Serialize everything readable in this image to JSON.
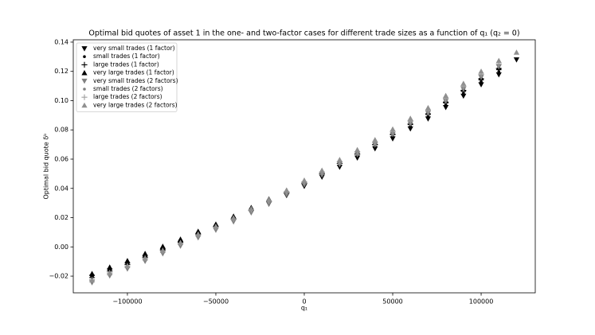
{
  "chart_data": {
    "type": "scatter",
    "title": "Optimal bid quotes of asset 1 in the one- and two-factor cases for different trade sizes as a function of q₁ (q₂ = 0)",
    "xlabel": "q₁",
    "ylabel": "Optimal bid quote δᵇ",
    "x": [
      -120000,
      -110000,
      -100000,
      -90000,
      -80000,
      -70000,
      -60000,
      -50000,
      -40000,
      -30000,
      -20000,
      -10000,
      0,
      10000,
      20000,
      30000,
      40000,
      50000,
      60000,
      70000,
      80000,
      90000,
      100000,
      110000,
      120000
    ],
    "series": [
      {
        "name": "very small trades (1 factor)",
        "color": "#000000",
        "marker": "v",
        "values": [
          -0.0206,
          -0.0163,
          -0.012,
          -0.0072,
          -0.0024,
          0.0024,
          0.0077,
          0.0125,
          0.0178,
          0.0236,
          0.0294,
          0.0352,
          0.0415,
          0.0478,
          0.0546,
          0.0609,
          0.0672,
          0.074,
          0.0808,
          0.0876,
          0.0954,
          0.1032,
          0.111,
          0.1178,
          0.128
        ]
      },
      {
        "name": "small trades (1 factor)",
        "color": "#000000",
        "marker": "o",
        "values": [
          -0.0208,
          -0.0164,
          -0.012,
          -0.0071,
          -0.0022,
          0.0027,
          0.0081,
          0.013,
          0.0184,
          0.0243,
          0.0302,
          0.0361,
          0.0425,
          0.0489,
          0.0558,
          0.0622,
          0.0686,
          0.0755,
          0.0824,
          0.0893,
          0.0972,
          0.1051,
          0.113,
          0.1199,
          null
        ]
      },
      {
        "name": "large trades (1 factor)",
        "color": "#000000",
        "marker": "+",
        "values": [
          -0.021,
          -0.0165,
          -0.012,
          -0.007,
          -0.002,
          0.003,
          0.0085,
          0.0135,
          0.019,
          0.025,
          0.031,
          0.037,
          0.0435,
          0.05,
          0.057,
          0.0635,
          0.07,
          0.077,
          0.084,
          0.091,
          0.099,
          0.107,
          0.115,
          0.122,
          null
        ]
      },
      {
        "name": "very large trades (1 factor)",
        "color": "#000000",
        "marker": "^",
        "values": [
          -0.0183,
          -0.0139,
          -0.0095,
          -0.0046,
          0.0003,
          0.0052,
          0.0106,
          0.0155,
          0.0209,
          0.0268,
          0.0327,
          0.0386,
          0.045,
          0.0514,
          0.0583,
          0.0647,
          0.0711,
          0.078,
          0.0849,
          0.0918,
          0.0997,
          0.1076,
          0.1155,
          0.1224,
          null
        ]
      },
      {
        "name": "very small trades (2 factors)",
        "color": "#808080",
        "marker": "v",
        "values": [
          -0.0244,
          -0.0197,
          -0.015,
          -0.0098,
          -0.0046,
          0.0006,
          0.0063,
          0.0115,
          0.0172,
          0.0234,
          0.0296,
          0.0358,
          0.0425,
          0.0492,
          0.0564,
          0.0631,
          0.0698,
          0.077,
          0.0842,
          0.0914,
          0.0996,
          0.1078,
          0.116,
          0.1232,
          null
        ]
      },
      {
        "name": "small trades (2 factors)",
        "color": "#808080",
        "marker": "o",
        "values": [
          -0.0234,
          -0.0187,
          -0.014,
          -0.0088,
          -0.0036,
          0.0016,
          0.0073,
          0.0125,
          0.0182,
          0.0244,
          0.0306,
          0.0368,
          0.0435,
          0.0502,
          0.0574,
          0.0641,
          0.0708,
          0.078,
          0.0852,
          0.0924,
          0.1006,
          0.1088,
          0.117,
          0.1242,
          null
        ]
      },
      {
        "name": "large trades (2 factors)",
        "color": "#a0a0a0",
        "marker": "+",
        "values": [
          -0.0224,
          -0.0177,
          -0.013,
          -0.0078,
          -0.0026,
          0.0026,
          0.0083,
          0.0135,
          0.0192,
          0.0254,
          0.0316,
          0.0378,
          0.0445,
          0.0512,
          0.0584,
          0.0651,
          0.0718,
          0.079,
          0.0862,
          0.0934,
          0.1016,
          0.1098,
          0.118,
          0.1252,
          null
        ]
      },
      {
        "name": "very large trades (2 factors)",
        "color": "#909090",
        "marker": "^",
        "values": [
          -0.0226,
          -0.0178,
          -0.013,
          -0.0077,
          -0.0024,
          0.0029,
          0.0087,
          0.014,
          0.0198,
          0.0261,
          0.0324,
          0.0387,
          0.0455,
          0.0523,
          0.0596,
          0.0664,
          0.0732,
          0.0805,
          0.0878,
          0.0951,
          0.1034,
          0.1117,
          0.12,
          0.1273,
          0.133
        ]
      }
    ],
    "xlim": [
      -130600,
      130600
    ],
    "ylim": [
      -0.0314,
      0.1416
    ],
    "xticks": [
      {
        "value": -100000,
        "label": "−100000"
      },
      {
        "value": -50000,
        "label": "−50000"
      },
      0,
      50000,
      100000
    ],
    "yticks": [
      {
        "value": -0.02,
        "label": "−0.02"
      },
      {
        "value": 0,
        "label": "0.00"
      },
      0.02,
      0.04,
      0.06,
      0.08,
      {
        "value": 0.1,
        "label": "0.10"
      },
      0.12,
      0.14
    ],
    "grid": false,
    "legend": "upper left"
  }
}
